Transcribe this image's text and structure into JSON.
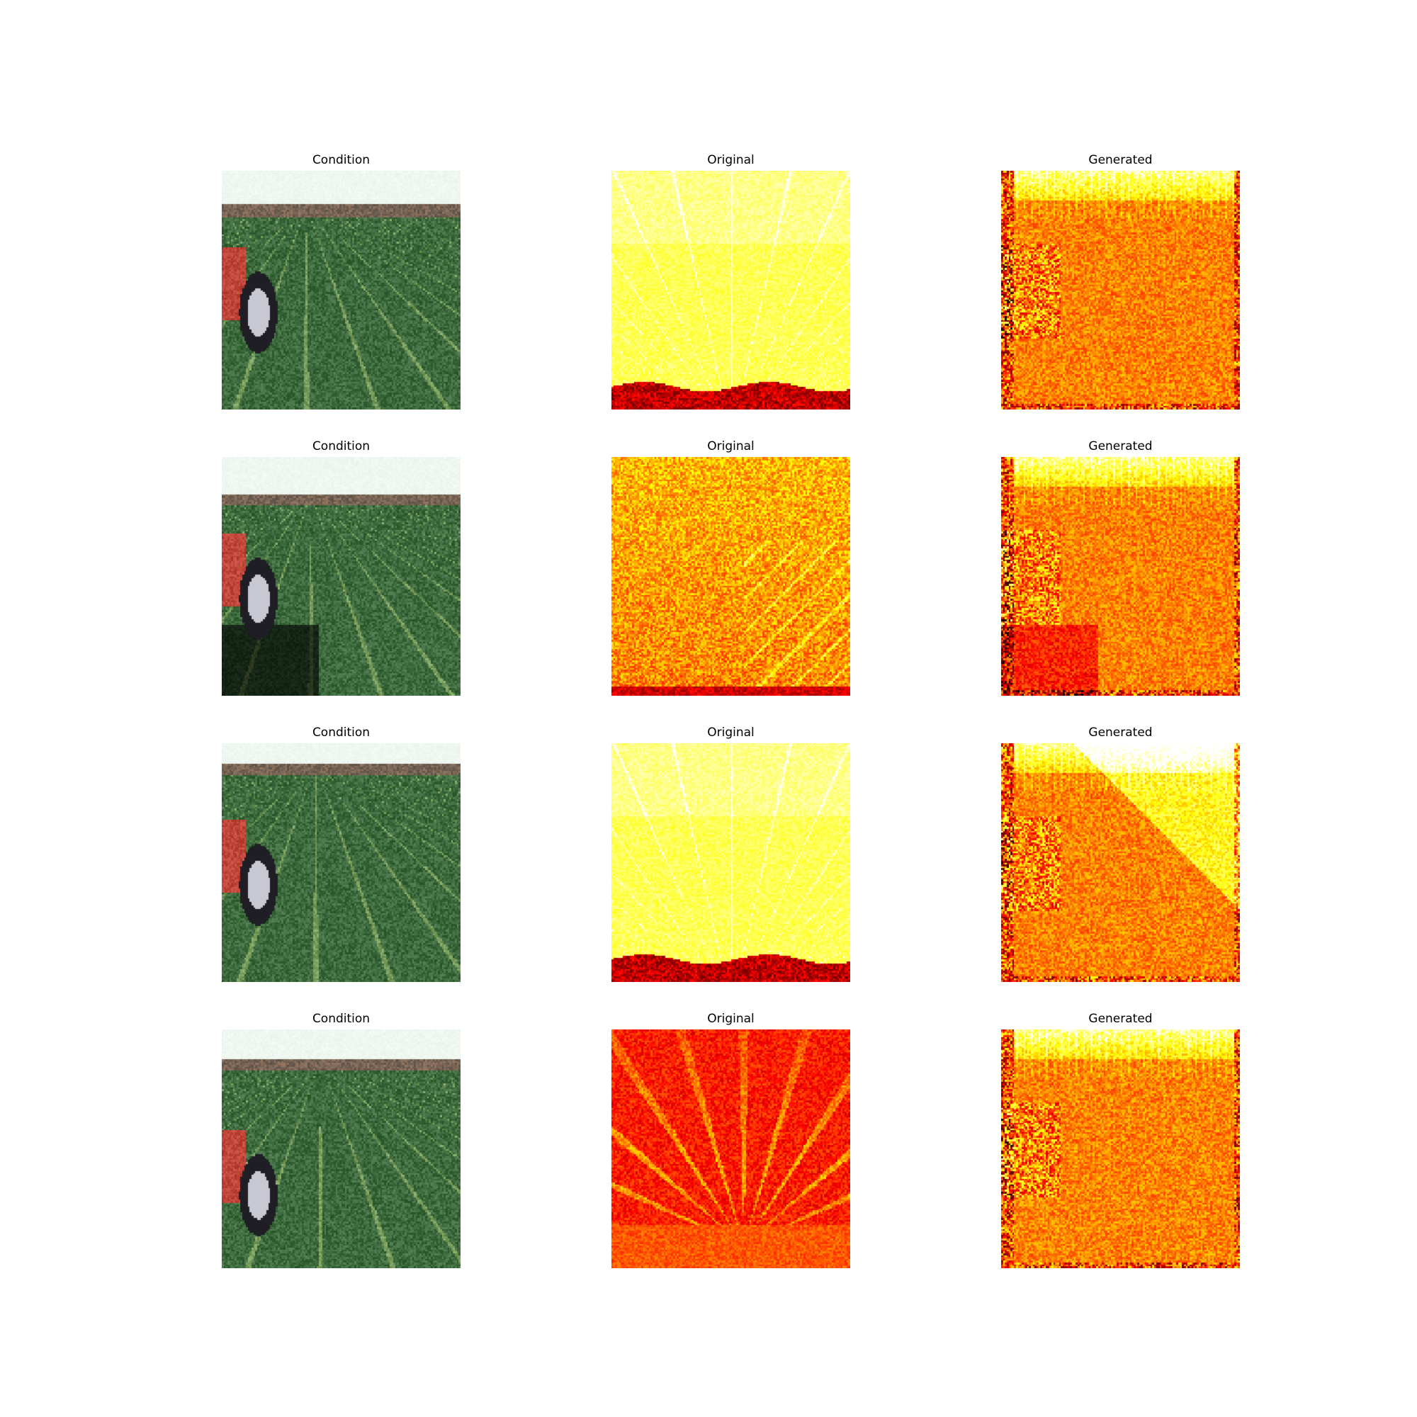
{
  "rows": [
    {
      "panels": [
        {
          "title": "Condition",
          "kind": "condition",
          "variant": 0
        },
        {
          "title": "Original",
          "kind": "orig-bright",
          "variant": 0
        },
        {
          "title": "Generated",
          "kind": "generated",
          "variant": 0
        }
      ]
    },
    {
      "panels": [
        {
          "title": "Condition",
          "kind": "condition",
          "variant": 1
        },
        {
          "title": "Original",
          "kind": "orig-orange",
          "variant": 1
        },
        {
          "title": "Generated",
          "kind": "generated",
          "variant": 1
        }
      ]
    },
    {
      "panels": [
        {
          "title": "Condition",
          "kind": "condition",
          "variant": 2
        },
        {
          "title": "Original",
          "kind": "orig-bright",
          "variant": 2
        },
        {
          "title": "Generated",
          "kind": "generated",
          "variant": 2
        }
      ]
    },
    {
      "panels": [
        {
          "title": "Condition",
          "kind": "condition",
          "variant": 3
        },
        {
          "title": "Original",
          "kind": "orig-dark",
          "variant": 3
        },
        {
          "title": "Generated",
          "kind": "generated",
          "variant": 3
        }
      ]
    }
  ],
  "colormap": "hot",
  "colors": {
    "sky": "#f2fbf4",
    "grass": "#3d6b3e",
    "tractor_red": "#c0463a",
    "tire": "#1e1e24"
  }
}
